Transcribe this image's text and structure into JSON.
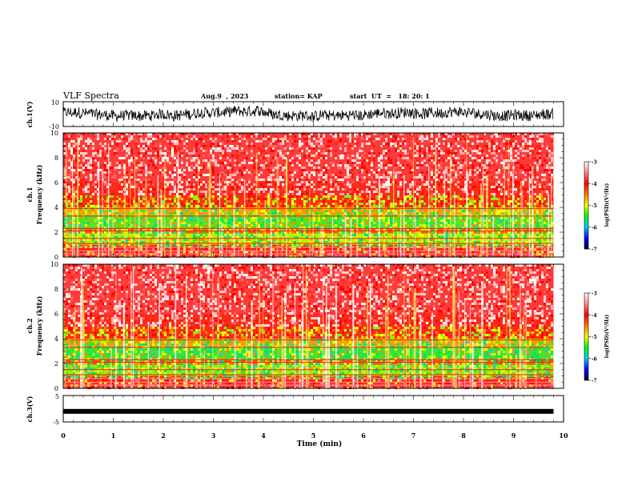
{
  "header": {
    "title": "VLF Spectra",
    "date": "Aug.9  , 2023",
    "station": "station= KAP",
    "start": "start  UT  =   18: 20: 1"
  },
  "chart_data": [
    {
      "type": "line",
      "name": "ch1-waveform",
      "ylabel": "ch.1(V)",
      "ylim": [
        -10,
        10
      ],
      "yticks": [
        -10,
        10
      ],
      "xlim": [
        0,
        10
      ],
      "x_end": 9.8
    },
    {
      "type": "heatmap",
      "name": "ch1-spectrogram",
      "ylabel": "ch.1\nFrequency (kHz)",
      "ylabel_line1": "ch.1",
      "ylabel_line2": "Frequency  (kHz)",
      "ylim": [
        0,
        10
      ],
      "yticks": [
        0,
        2,
        4,
        6,
        8,
        10
      ],
      "xlim": [
        0,
        10
      ],
      "x_end": 9.8,
      "colorbar": {
        "label": "log(PSD)(V²/Hz)",
        "range": [
          -7,
          -3
        ],
        "ticks": [
          -7,
          -6,
          -5,
          -4,
          -3
        ]
      }
    },
    {
      "type": "heatmap",
      "name": "ch2-spectrogram",
      "ylabel": "ch.2\nFrequency (kHz)",
      "ylabel_line1": "ch.2",
      "ylabel_line2": "Frequency  (kHz)",
      "ylim": [
        0,
        10
      ],
      "yticks": [
        0,
        2,
        4,
        6,
        8,
        10
      ],
      "xlim": [
        0,
        10
      ],
      "x_end": 9.8,
      "colorbar": {
        "label": "log(PSD)(V²/Hz)",
        "range": [
          -7,
          -3
        ],
        "ticks": [
          -7,
          -6,
          -5,
          -4,
          -3
        ]
      }
    },
    {
      "type": "line",
      "name": "ch3-waveform",
      "ylabel": "ch.3(V)",
      "ylim": [
        -5,
        5
      ],
      "yticks": [
        -5,
        5
      ],
      "level": -1,
      "xlim": [
        0,
        10
      ],
      "x_end": 9.8,
      "xlabel": "Time  (min)",
      "xticks": [
        0,
        1,
        2,
        3,
        4,
        5,
        6,
        7,
        8,
        9,
        10
      ]
    }
  ],
  "colors": {
    "waveform": "#000000",
    "colormap": [
      "#000033",
      "#0000ff",
      "#00ffff",
      "#00ff00",
      "#ffff00",
      "#ff8000",
      "#ff0000",
      "#ffffff"
    ]
  }
}
